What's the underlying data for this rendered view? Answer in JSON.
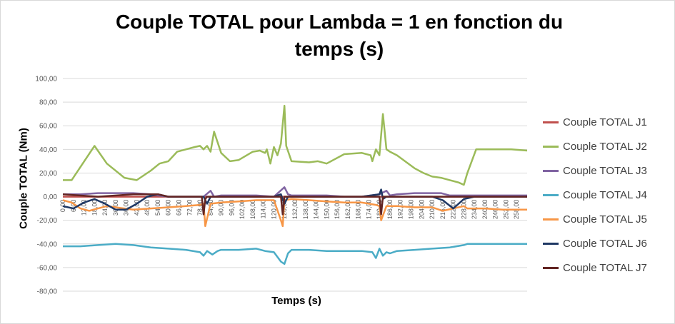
{
  "chart_data": {
    "type": "line",
    "title": "Couple TOTAL pour Lambda = 1 en fonction du temps (s)",
    "title_lines": [
      "Couple TOTAL pour Lambda = 1 en fonction du",
      "temps (s)"
    ],
    "xlabel": "Temps (s)",
    "ylabel": "Couple TOTAL (Nm)",
    "ylim": [
      -80,
      100
    ],
    "xlim": [
      0,
      264
    ],
    "y_ticks": [
      "100,00",
      "80,00",
      "60,00",
      "40,00",
      "20,00",
      "0,00",
      "-20,00",
      "-40,00",
      "-60,00",
      "-80,00"
    ],
    "y_tick_values": [
      100,
      80,
      60,
      40,
      20,
      0,
      -20,
      -40,
      -60,
      -80
    ],
    "x_ticks": [
      "0,00",
      "6,00",
      "12,00",
      "18,00",
      "24,00",
      "30,00",
      "36,00",
      "42,00",
      "48,00",
      "54,00",
      "60,00",
      "66,00",
      "72,00",
      "78,00",
      "84,00",
      "90,00",
      "96,00",
      "102,00",
      "108,00",
      "114,00",
      "120,00",
      "126,00",
      "132,00",
      "138,00",
      "144,00",
      "150,00",
      "156,00",
      "162,00",
      "168,00",
      "174,00",
      "180,00",
      "186,00",
      "192,00",
      "198,00",
      "204,00",
      "210,00",
      "216,00",
      "222,00",
      "228,00",
      "234,00",
      "240,00",
      "246,00",
      "252,00",
      "258,00"
    ],
    "x_tick_values": [
      0,
      6,
      12,
      18,
      24,
      30,
      36,
      42,
      48,
      54,
      60,
      66,
      72,
      78,
      84,
      90,
      96,
      102,
      108,
      114,
      120,
      126,
      132,
      138,
      144,
      150,
      156,
      162,
      168,
      174,
      180,
      186,
      192,
      198,
      204,
      210,
      216,
      222,
      228,
      234,
      240,
      246,
      252,
      258
    ],
    "grid": true,
    "legend_position": "right",
    "series": [
      {
        "name": "Couple TOTAL J1",
        "color": "#c0504d",
        "x": [
          0,
          10,
          20,
          30,
          40,
          50,
          60,
          70,
          80,
          90,
          100,
          110,
          120,
          130,
          140,
          150,
          160,
          170,
          180,
          190,
          200,
          210,
          220,
          230,
          240,
          250,
          264
        ],
        "y": [
          0,
          0,
          0,
          0,
          0,
          0,
          0,
          0,
          0,
          0,
          0,
          0,
          0,
          0,
          0,
          0,
          0,
          0,
          0,
          0,
          0,
          0,
          0,
          0,
          0,
          0,
          0
        ]
      },
      {
        "name": "Couple TOTAL J2",
        "color": "#9bbb59",
        "x": [
          0,
          5,
          18,
          25,
          35,
          42,
          50,
          55,
          60,
          65,
          70,
          75,
          78,
          80,
          82,
          84,
          86,
          90,
          95,
          100,
          108,
          112,
          115,
          116,
          118,
          120,
          122,
          124,
          126,
          127,
          130,
          140,
          145,
          150,
          160,
          170,
          175,
          176,
          178,
          180,
          182,
          184,
          186,
          190,
          200,
          205,
          210,
          215,
          220,
          225,
          228,
          230,
          235,
          245,
          255,
          264
        ],
        "y": [
          14,
          14,
          43,
          28,
          16,
          14,
          22,
          28,
          30,
          38,
          40,
          42,
          43,
          40,
          43,
          38,
          55,
          37,
          30,
          31,
          38,
          39,
          37,
          40,
          28,
          42,
          35,
          45,
          77,
          43,
          30,
          29,
          30,
          28,
          36,
          37,
          35,
          30,
          40,
          35,
          70,
          40,
          38,
          35,
          24,
          20,
          17,
          16,
          14,
          12,
          10,
          20,
          40,
          40,
          40,
          39
        ]
      },
      {
        "name": "Couple TOTAL J3",
        "color": "#8064a2",
        "x": [
          0,
          10,
          20,
          30,
          40,
          50,
          54,
          60,
          70,
          80,
          84,
          86,
          90,
          100,
          110,
          120,
          126,
          128,
          130,
          140,
          150,
          160,
          170,
          180,
          184,
          186,
          190,
          200,
          210,
          215,
          220,
          230,
          264
        ],
        "y": [
          2,
          2,
          3,
          3,
          3,
          2,
          1,
          0,
          0,
          0,
          5,
          0,
          1,
          1,
          1,
          0,
          8,
          2,
          1,
          1,
          1,
          0,
          0,
          2,
          5,
          1,
          2,
          3,
          3,
          3,
          1,
          1,
          1
        ]
      },
      {
        "name": "Couple TOTAL J4",
        "color": "#4bacc6",
        "x": [
          0,
          10,
          20,
          30,
          40,
          50,
          60,
          70,
          78,
          80,
          82,
          85,
          88,
          90,
          100,
          110,
          115,
          120,
          124,
          126,
          128,
          130,
          140,
          150,
          160,
          170,
          176,
          178,
          180,
          182,
          184,
          186,
          190,
          200,
          210,
          220,
          228,
          230,
          240,
          250,
          264
        ],
        "y": [
          -42,
          -42,
          -41,
          -40,
          -41,
          -43,
          -44,
          -45,
          -47,
          -50,
          -46,
          -49,
          -46,
          -45,
          -45,
          -44,
          -46,
          -47,
          -55,
          -57,
          -48,
          -45,
          -45,
          -46,
          -46,
          -46,
          -47,
          -52,
          -44,
          -50,
          -47,
          -48,
          -46,
          -45,
          -44,
          -43,
          -41,
          -40,
          -40,
          -40,
          -40
        ]
      },
      {
        "name": "Couple TOTAL J5",
        "color": "#f79646",
        "x": [
          0,
          5,
          10,
          15,
          20,
          25,
          30,
          35,
          40,
          50,
          60,
          70,
          78,
          80,
          81,
          84,
          90,
          100,
          110,
          120,
          124,
          125,
          126,
          130,
          140,
          150,
          160,
          170,
          178,
          180,
          181,
          184,
          190,
          200,
          210,
          216,
          222,
          228,
          230,
          240,
          250,
          264
        ],
        "y": [
          -3,
          -5,
          -10,
          -12,
          -10,
          -8,
          -9,
          -10,
          -11,
          -10,
          -9,
          -8,
          -7,
          -6,
          -25,
          -6,
          -5,
          -4,
          -3,
          -3,
          -20,
          -25,
          -3,
          -2,
          -3,
          -4,
          -5,
          -5,
          -7,
          -8,
          -20,
          -8,
          -8,
          -9,
          -9,
          -12,
          -10,
          -8,
          -10,
          -10,
          -11,
          -11
        ]
      },
      {
        "name": "Couple TOTAL J6",
        "color": "#1f3864",
        "x": [
          0,
          6,
          12,
          18,
          24,
          30,
          36,
          42,
          48,
          54,
          60,
          70,
          80,
          82,
          84,
          90,
          100,
          110,
          120,
          124,
          126,
          128,
          130,
          140,
          150,
          160,
          170,
          180,
          181,
          182,
          184,
          190,
          200,
          210,
          216,
          222,
          228,
          234,
          264
        ],
        "y": [
          -8,
          -10,
          -5,
          -2,
          -6,
          -11,
          -11,
          -6,
          0,
          2,
          0,
          0,
          0,
          -6,
          0,
          0,
          0,
          0,
          0,
          2,
          -6,
          0,
          0,
          0,
          0,
          0,
          0,
          2,
          6,
          -2,
          0,
          0,
          0,
          0,
          -3,
          -10,
          -2,
          0,
          0
        ]
      },
      {
        "name": "Couple TOTAL J7",
        "color": "#632523",
        "x": [
          0,
          20,
          40,
          54,
          60,
          70,
          79,
          80,
          81,
          82,
          90,
          100,
          110,
          120,
          124,
          125,
          126,
          130,
          140,
          150,
          160,
          170,
          180,
          181,
          182,
          184,
          190,
          200,
          210,
          220,
          230,
          240,
          250,
          264
        ],
        "y": [
          2,
          0,
          2,
          2,
          0,
          0,
          0,
          -15,
          -2,
          0,
          0,
          0,
          0,
          0,
          0,
          -15,
          0,
          0,
          0,
          0,
          0,
          0,
          0,
          -15,
          0,
          0,
          0,
          0,
          0,
          0,
          0,
          0,
          0,
          0
        ]
      }
    ]
  }
}
